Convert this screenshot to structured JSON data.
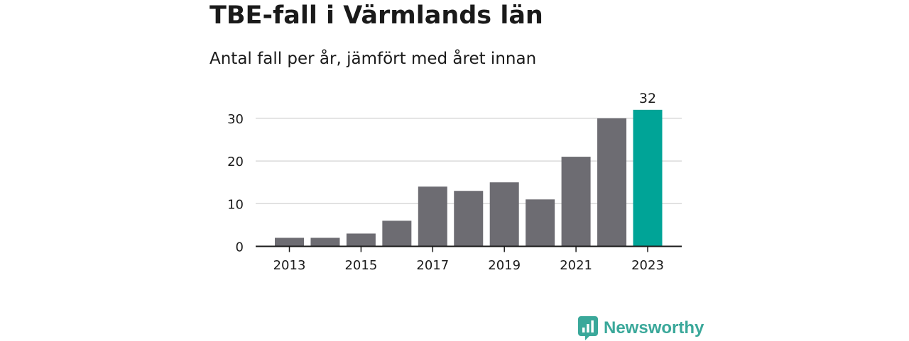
{
  "header": {
    "title": "TBE-fall i Värmlands län",
    "subtitle": "Antal fall per år, jämfört med året innan"
  },
  "brand": {
    "name": "Newsworthy",
    "icon": "newsworthy-logo-icon"
  },
  "colors": {
    "bar": "#6d6c72",
    "highlight": "#00a497",
    "grid": "#d9d9d9",
    "axis": "#1a1a1a",
    "brand": "#3aa89a"
  },
  "chart_data": {
    "type": "bar",
    "categories": [
      "2013",
      "2014",
      "2015",
      "2016",
      "2017",
      "2018",
      "2019",
      "2020",
      "2021",
      "2022",
      "2023"
    ],
    "values": [
      2,
      2,
      3,
      6,
      14,
      13,
      15,
      11,
      21,
      30,
      32
    ],
    "x_tick_labels": [
      "2013",
      "2015",
      "2017",
      "2019",
      "2021",
      "2023"
    ],
    "y_ticks": [
      0,
      10,
      20,
      30
    ],
    "ylim": [
      0,
      33
    ],
    "highlight_index": 10,
    "data_labels": [
      {
        "index": 10,
        "text": "32"
      }
    ],
    "grid": true,
    "legend": "none",
    "xlabel": "",
    "ylabel": ""
  }
}
